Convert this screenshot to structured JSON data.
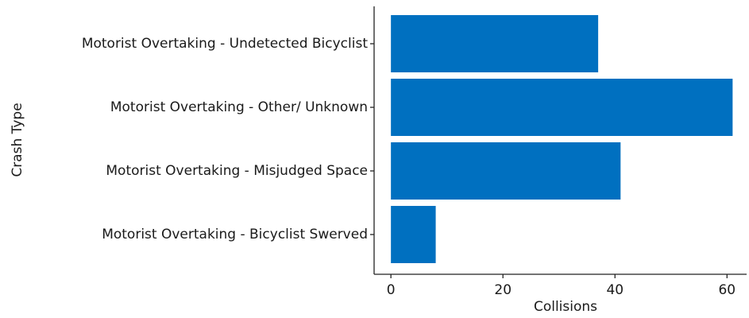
{
  "chart_data": {
    "type": "bar",
    "orientation": "horizontal",
    "x_label": "Collisions",
    "y_label": "Crash Type",
    "categories": [
      "Motorist Overtaking - Undetected Bicyclist",
      "Motorist Overtaking - Other/ Unknown",
      "Motorist Overtaking - Misjudged Space",
      "Motorist Overtaking - Bicyclist Swerved"
    ],
    "values": [
      37,
      61,
      41,
      8
    ],
    "color": "#0070c0",
    "xlim": [
      -3,
      63.5
    ],
    "xticks": [
      0,
      20,
      40,
      60
    ],
    "grid": false
  }
}
